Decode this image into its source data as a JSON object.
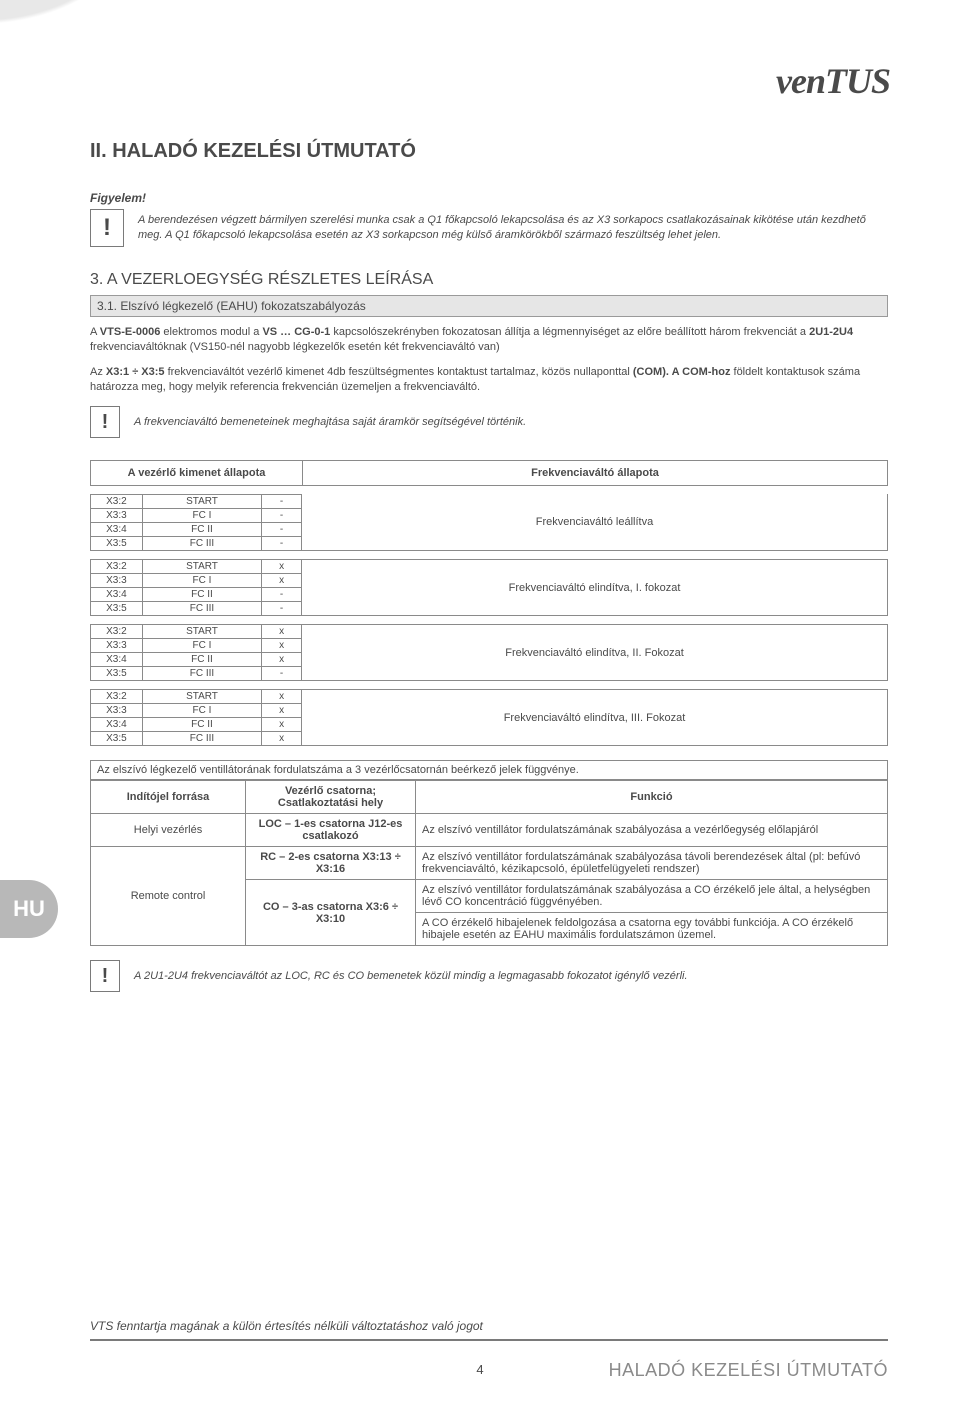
{
  "logo": "venTUS",
  "title": "II. HALADÓ KEZELÉSI ÚTMUTATÓ",
  "attention_label": "Figyelem!",
  "warning_main": "A berendezésen végzett bármilyen szerelési munka csak a Q1 főkapcsoló lekapcsolása és az X3 sorkapocs csatlakozásainak kikötése után kezdhető meg. A Q1 főkapcsoló lekapcsolása esetén az X3 sorkapcson még külső áramkörökből származó feszültség lehet jelen.",
  "section3_title": "3. A VEZERLOEGYSÉG RÉSZLETES LEÍRÁSA",
  "section31_title": "3.1. Elszívó légkezelő (EAHU) fokozatszabályozás",
  "para1_a": "A ",
  "para1_b1": "VTS-E-0006",
  "para1_c": " elektromos modul a ",
  "para1_b2": "VS … CG-0-1",
  "para1_d": " kapcsolószekrényben fokozatosan állítja a légmennyiséget az előre beállított három frekvenciát a ",
  "para1_b3": "2U1-2U4",
  "para1_e": " frekvenciaváltóknak (VS150-nél nagyobb légkezelők esetén két frekvenciaváltó van)",
  "para2_a": "Az ",
  "para2_b1": "X3:1 ÷ X3:5",
  "para2_b": " frekvenciaváltót vezérlő kimenet 4db feszültségmentes kontaktust tartalmaz, közös nullaponttal ",
  "para2_b2": "(COM). A COM-hoz",
  "para2_c": " földelt kontaktusok száma határozza meg, hogy melyik referencia frekvencián üzemeljen a frekvenciaváltó.",
  "note1": "A frekvenciaváltó bemeneteinek meghajtása saját áramkör segítségével történik.",
  "state_header_left": "A vezérlő kimenet állapota",
  "state_header_right": "Frekvenciaváltó állapota",
  "terminal_rows": [
    {
      "t": "X3:2",
      "s": "START"
    },
    {
      "t": "X3:3",
      "s": "FC I"
    },
    {
      "t": "X3:4",
      "s": "FC II"
    },
    {
      "t": "X3:5",
      "s": "FC III"
    }
  ],
  "states": [
    {
      "vals": [
        "-",
        "-",
        "-",
        "-"
      ],
      "desc": "Frekvenciaváltó leállítva"
    },
    {
      "vals": [
        "x",
        "x",
        "-",
        "-"
      ],
      "desc": "Frekvenciaváltó elindítva, I. fokozat"
    },
    {
      "vals": [
        "x",
        "x",
        "x",
        "-"
      ],
      "desc": "Frekvenciaváltó elindítva, II. Fokozat"
    },
    {
      "vals": [
        "x",
        "x",
        "x",
        "x"
      ],
      "desc": "Frekvenciaváltó elindítva, III. Fokozat"
    }
  ],
  "speed_intro": "Az elszívó légkezelő ventillátorának fordulatszáma a 3 vezérlőcsatornán beérkező jelek függvénye.",
  "sig_headers": {
    "src": "Indítójel forrása",
    "chan": "Vezérlő csatorna; Csatlakoztatási hely",
    "func": "Funkció"
  },
  "sig_rows": [
    {
      "src": "Helyi vezérlés",
      "chan": "LOC – 1-es csatorna J12-es csatlakozó",
      "func": "Az elszívó ventillátor fordulatszámának szabályozása a vezérlőegység előlapjáról"
    },
    {
      "src": "Remote control",
      "chan": "RC – 2-es csatorna X3:13 ÷ X3:16",
      "func": "Az elszívó ventillátor fordulatszámának szabályozása távoli berendezések által (pl: befúvó frekvenciaváltó, kézikapcsoló, épületfelügyeleti rendszer)"
    },
    {
      "chan": "CO – 3-as csatorna X3:6 ÷ X3:10",
      "func": "Az elszívó ventillátor fordulatszámának szabályozása a CO érzékelő jele által, a helységben lévő CO koncentráció függvényében."
    },
    {
      "func": "A CO érzékelő hibajelenek feldolgozása a csatorna egy további funkciója. A CO érzékelő hibajele esetén az EAHU maximális fordulatszámon üzemel."
    }
  ],
  "note2": "A 2U1-2U4 frekvenciaváltót az LOC, RC és CO bemenetek közül mindig a legmagasabb fokozatot igénylő vezérli.",
  "footer_note": "VTS fenntartja magának a külön értesítés nélküli változtatáshoz való jogot",
  "page_num": "4",
  "footer_title": "HALADÓ KEZELÉSI ÚTMUTATÓ",
  "hu_tab": "HU"
}
